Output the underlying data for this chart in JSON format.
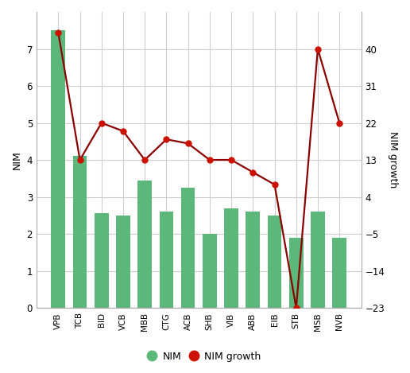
{
  "categories": [
    "VPB",
    "TCB",
    "BID",
    "VCB",
    "MBB",
    "CTG",
    "ACB",
    "SHB",
    "VIB",
    "ABB",
    "EIB",
    "STB",
    "MSB",
    "NVB"
  ],
  "nim_values": [
    7.5,
    4.1,
    2.55,
    2.5,
    3.45,
    2.6,
    3.25,
    2.0,
    2.7,
    2.6,
    2.5,
    1.9,
    2.6,
    1.9
  ],
  "nim_growth": [
    44,
    13,
    22,
    20,
    13,
    18,
    17,
    13,
    13,
    10,
    7,
    -23,
    40,
    22
  ],
  "bar_color": "#5cb87a",
  "line_color": "#8b0000",
  "dot_color": "#cc1100",
  "ylabel_left": "NIM",
  "ylabel_right": "NIM growth",
  "ylim_left": [
    0,
    8
  ],
  "ylim_right": [
    -23,
    49
  ],
  "yticks_left": [
    0,
    1,
    2,
    3,
    4,
    5,
    6,
    7
  ],
  "yticks_right": [
    -23,
    -14,
    -5,
    4,
    13,
    22,
    31,
    40
  ],
  "legend_nim": "NIM",
  "legend_growth": "NIM growth",
  "background_color": "#ffffff",
  "grid_color": "#cccccc"
}
